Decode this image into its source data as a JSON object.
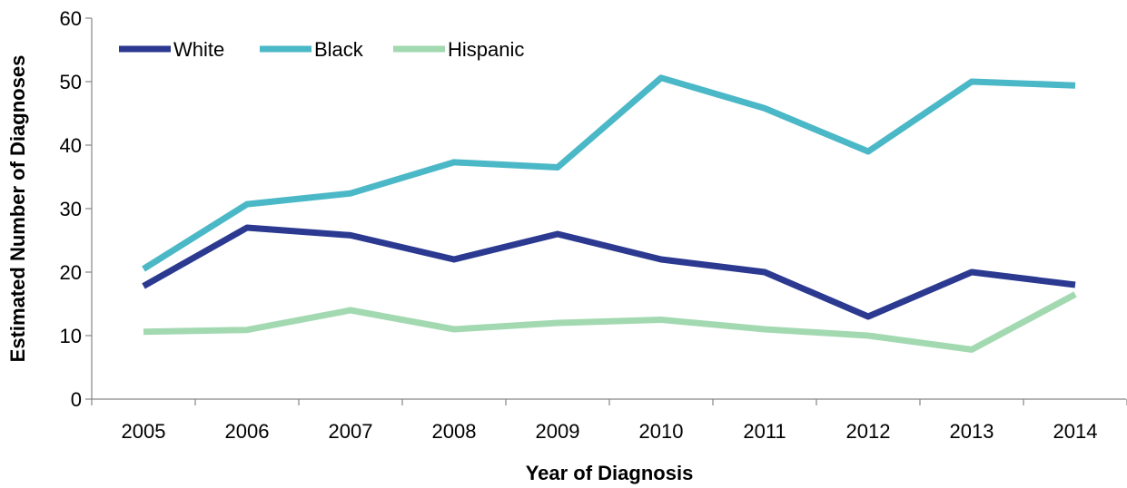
{
  "chart_data": {
    "type": "line",
    "title": "",
    "xlabel": "Year of Diagnosis",
    "ylabel": "Estimated Number of Diagnoses",
    "categories": [
      "2005",
      "2006",
      "2007",
      "2008",
      "2009",
      "2010",
      "2011",
      "2012",
      "2013",
      "2014"
    ],
    "ylim": [
      0,
      60
    ],
    "yticks": [
      0,
      10,
      20,
      30,
      40,
      50,
      60
    ],
    "grid": false,
    "legend_position": "top-left",
    "series": [
      {
        "name": "White",
        "color": "#2b3990",
        "values": [
          17.8,
          27,
          25.8,
          22,
          26,
          22,
          20,
          13,
          20,
          18
        ]
      },
      {
        "name": "Black",
        "color": "#4bb8c7",
        "values": [
          20.5,
          30.7,
          32.4,
          37.3,
          36.5,
          50.6,
          45.8,
          39,
          50,
          49.4
        ]
      },
      {
        "name": "Hispanic",
        "color": "#a3d9b1",
        "values": [
          10.6,
          10.9,
          14,
          11,
          12,
          12.5,
          11,
          10,
          7.8,
          16.5
        ]
      }
    ]
  }
}
